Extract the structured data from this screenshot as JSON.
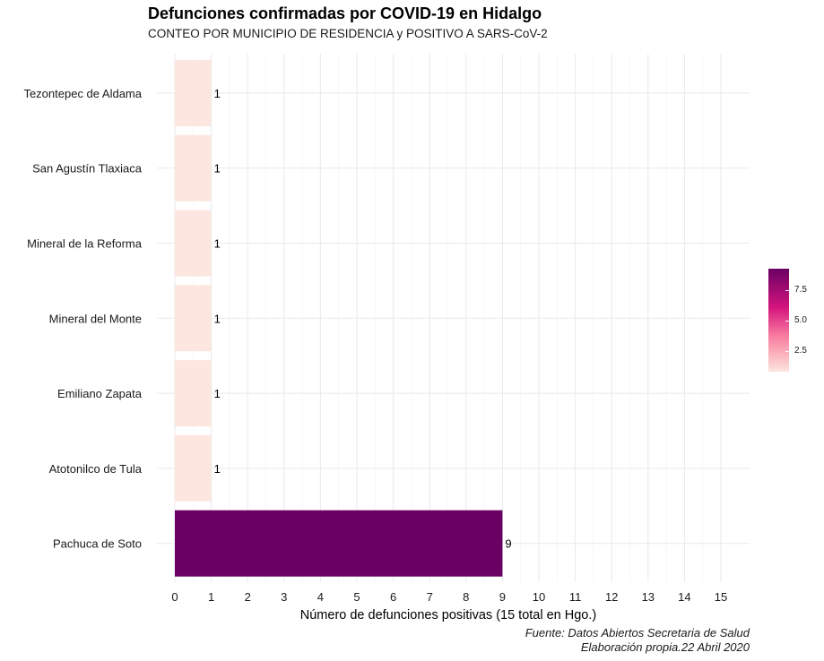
{
  "title": "Defunciones confirmadas por COVID-19 en Hidalgo",
  "subtitle": "CONTEO POR MUNICIPIO DE RESIDENCIA y POSITIVO A SARS-CoV-2",
  "caption_line1": "Fuente: Datos Abiertos Secretaria de Salud",
  "caption_line2": "Elaboración propia.22 Abril 2020",
  "chart_data": {
    "type": "bar",
    "orientation": "horizontal",
    "categories": [
      "Tezontepec de Aldama",
      "San Agustín Tlaxiaca",
      "Mineral de la Reforma",
      "Mineral del Monte",
      "Emiliano Zapata",
      "Atotonilco de Tula",
      "Pachuca de Soto"
    ],
    "values": [
      1,
      1,
      1,
      1,
      1,
      1,
      9
    ],
    "data_labels": [
      "1",
      "1",
      "1",
      "1",
      "1",
      "1",
      "9"
    ],
    "xlabel": "Número de defunciones positivas (15 total en Hgo.)",
    "ylabel": "",
    "xlim": [
      0,
      15
    ],
    "x_ticks": [
      "0",
      "1",
      "2",
      "3",
      "4",
      "5",
      "6",
      "7",
      "8",
      "9",
      "10",
      "11",
      "12",
      "13",
      "14",
      "15"
    ],
    "grid": true,
    "fill_scale": {
      "low": "#fde6e0",
      "mid": "#f768a1",
      "high": "#6a0064"
    },
    "legend": {
      "position": "right",
      "ticks": [
        "7.5",
        "5.0",
        "2.5"
      ]
    }
  }
}
